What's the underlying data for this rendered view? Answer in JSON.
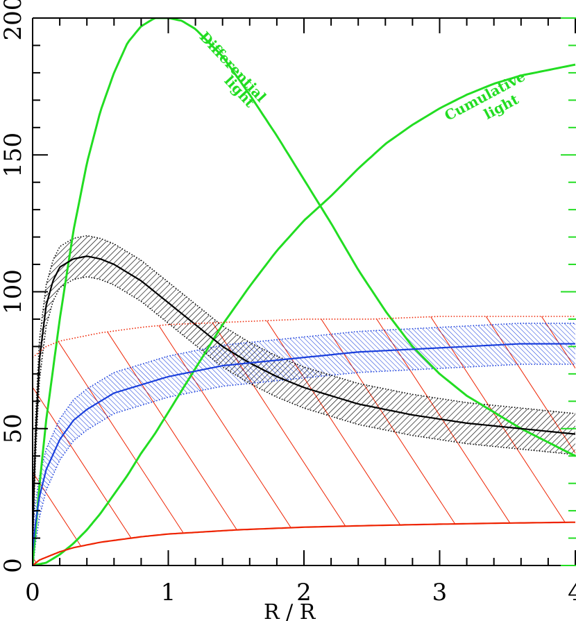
{
  "chart_data": {
    "type": "line",
    "title": "",
    "xlabel": "R / R",
    "ylabel": "",
    "xlim": [
      0,
      4
    ],
    "ylim": [
      0,
      200
    ],
    "x_ticks": [
      "0",
      "1",
      "2",
      "3",
      "4"
    ],
    "y_ticks": [
      "0",
      "50",
      "100",
      "150",
      "200"
    ],
    "grid": false,
    "colors": {
      "green": "#22dd22",
      "black": "#000000",
      "blue": "#1a3fdc",
      "red": "#ee2200"
    },
    "annotations": [
      {
        "text": "Differential",
        "x": 1.45,
        "y": 181,
        "rotate": 47
      },
      {
        "text": "light",
        "x": 1.5,
        "y": 172,
        "rotate": 47
      },
      {
        "text": "Cumulative",
        "x": 3.35,
        "y": 170,
        "rotate": -28
      },
      {
        "text": "light",
        "x": 3.47,
        "y": 166,
        "rotate": -28
      }
    ],
    "series": [
      {
        "id": "differential",
        "color": "#22dd22",
        "style": "solid",
        "x": [
          0,
          0.05,
          0.1,
          0.2,
          0.3,
          0.4,
          0.5,
          0.6,
          0.7,
          0.8,
          0.9,
          1.0,
          1.1,
          1.2,
          1.4,
          1.6,
          1.8,
          2.0,
          2.2,
          2.4,
          2.6,
          2.8,
          3.0,
          3.2,
          3.4,
          3.6,
          3.8,
          4.0
        ],
        "values": [
          0,
          29,
          53,
          90,
          122,
          147,
          166,
          180,
          191,
          197,
          200,
          200,
          199,
          196,
          186,
          172,
          157,
          141,
          125,
          108,
          93,
          80,
          70,
          62,
          56,
          50,
          45,
          40
        ]
      },
      {
        "id": "cumulative",
        "color": "#22dd22",
        "style": "solid",
        "x": [
          0,
          0.1,
          0.2,
          0.3,
          0.4,
          0.5,
          0.6,
          0.7,
          0.8,
          0.9,
          1.0,
          1.2,
          1.4,
          1.6,
          1.8,
          2.0,
          2.2,
          2.4,
          2.6,
          2.8,
          3.0,
          3.2,
          3.4,
          3.6,
          3.8,
          4.0
        ],
        "values": [
          0,
          1,
          4,
          8,
          13,
          19,
          26,
          33,
          41,
          48,
          56,
          72,
          88,
          102,
          115,
          126,
          135,
          145,
          154,
          161,
          167,
          172,
          176,
          179,
          181,
          183
        ]
      },
      {
        "id": "black-profile",
        "color": "#000000",
        "style": "solid",
        "band": 7.5,
        "x": [
          0,
          0.02,
          0.05,
          0.1,
          0.15,
          0.2,
          0.3,
          0.4,
          0.5,
          0.6,
          0.8,
          1.0,
          1.2,
          1.4,
          1.6,
          1.8,
          2.0,
          2.4,
          2.8,
          3.2,
          3.6,
          4.0
        ],
        "values": [
          10,
          45,
          75,
          95,
          104,
          109,
          112,
          113,
          112,
          110,
          104,
          96,
          88,
          80,
          74,
          69,
          65,
          59,
          55,
          52,
          50,
          48
        ]
      },
      {
        "id": "blue-profile",
        "color": "#1a3fdc",
        "style": "solid",
        "band": 7.5,
        "x": [
          0,
          0.02,
          0.05,
          0.1,
          0.2,
          0.3,
          0.4,
          0.5,
          0.6,
          0.8,
          1.0,
          1.2,
          1.4,
          1.6,
          2.0,
          2.4,
          2.8,
          3.2,
          3.6,
          4.0
        ],
        "values": [
          5,
          15,
          25,
          35,
          46,
          53,
          57,
          60,
          63,
          66,
          69,
          71,
          73,
          74,
          76,
          78,
          79,
          80,
          81,
          81
        ]
      },
      {
        "id": "red-dotted",
        "color": "#ee2200",
        "style": "dotted",
        "x": [
          0,
          0.05,
          0.1,
          0.2,
          0.3,
          0.5,
          0.8,
          1.0,
          1.5,
          2.0,
          2.5,
          3.0,
          3.5,
          4.0
        ],
        "values": [
          76,
          78,
          80,
          82,
          83,
          85,
          87,
          88,
          89,
          90,
          90,
          91,
          91,
          91
        ]
      },
      {
        "id": "red-solid",
        "color": "#ee2200",
        "style": "solid",
        "x": [
          0,
          0.05,
          0.1,
          0.2,
          0.3,
          0.5,
          0.8,
          1.0,
          1.5,
          2.0,
          2.5,
          3.0,
          3.5,
          4.0
        ],
        "values": [
          0,
          2,
          3,
          5,
          6.5,
          8.5,
          10.5,
          11.5,
          13,
          14,
          14.6,
          15.1,
          15.5,
          15.8
        ]
      }
    ]
  }
}
